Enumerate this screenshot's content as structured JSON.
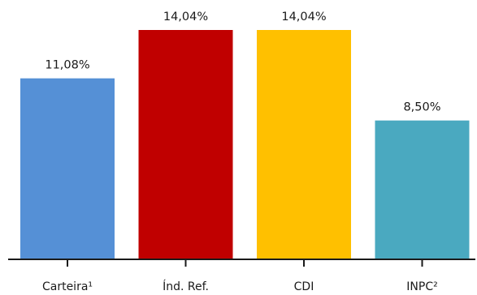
{
  "chart_data": {
    "type": "bar",
    "categories": [
      "Carteira¹",
      "Índ. Ref.",
      "CDI",
      "INPC²"
    ],
    "values": [
      11.08,
      14.04,
      14.04,
      8.5
    ],
    "value_labels": [
      "11,08%",
      "14,04%",
      "14,04%",
      "8,50%"
    ],
    "colors": [
      "#5590d6",
      "#c00000",
      "#ffc000",
      "#4aa9c0"
    ],
    "title": "",
    "xlabel": "",
    "ylabel": "",
    "ylim": [
      0,
      14.04
    ],
    "grid": false,
    "legend": "none"
  }
}
